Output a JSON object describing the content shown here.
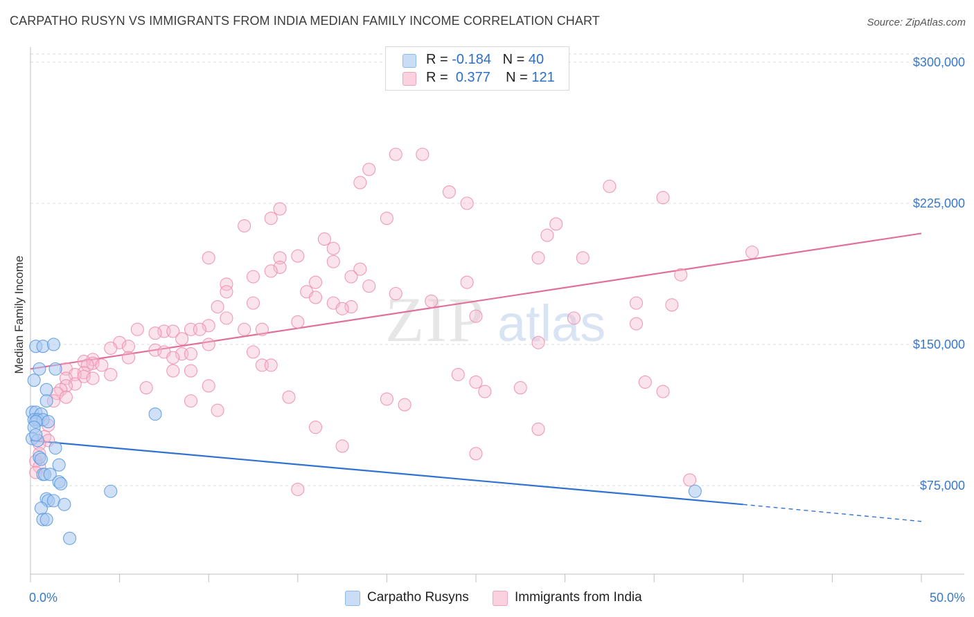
{
  "title": "CARPATHO RUSYN VS IMMIGRANTS FROM INDIA MEDIAN FAMILY INCOME CORRELATION CHART",
  "source": "Source: ZipAtlas.com",
  "watermark": {
    "zip": "ZIP",
    "atlas": "atlas"
  },
  "legend": {
    "rows": [
      {
        "r_label": "R = ",
        "r_value": "-0.184",
        "n_label": "N = ",
        "n_value": "40",
        "color": "#a9c9f0"
      },
      {
        "r_label": "R = ",
        "r_value": "0.377",
        "n_label": "N = ",
        "n_value": "121",
        "color": "#f5b8cc"
      }
    ]
  },
  "bottom_legend": [
    {
      "label": "Carpatho Rusyns",
      "color": "#a9c9f0"
    },
    {
      "label": "Immigrants from India",
      "color": "#f5b8cc"
    }
  ],
  "chart_data": {
    "type": "scatter",
    "title": "CARPATHO RUSYN VS IMMIGRANTS FROM INDIA MEDIAN FAMILY INCOME CORRELATION CHART",
    "xlabel": "",
    "ylabel": "Median Family Income",
    "xlim": [
      0,
      50
    ],
    "ylim": [
      28000,
      308000
    ],
    "x_tick_labels": [
      {
        "x": 0,
        "label": "0.0%"
      },
      {
        "x": 50,
        "label": "50.0%"
      }
    ],
    "y_ticks": [
      {
        "y": 75000,
        "label": "$75,000"
      },
      {
        "y": 150000,
        "label": "$150,000"
      },
      {
        "y": 225000,
        "label": "$225,000"
      },
      {
        "y": 300000,
        "label": "$300,000"
      }
    ],
    "series": [
      {
        "name": "Carpatho Rusyns",
        "color": "#5b9be0",
        "fill": "#a9c9f0",
        "trend": {
          "x0": 0,
          "y0": 99000,
          "x1": 40,
          "y1": 65000,
          "dash_to_x": 50,
          "dash_to_y": 56000,
          "color": "#2f72d0"
        },
        "points": [
          [
            0.3,
            149000
          ],
          [
            0.7,
            149000
          ],
          [
            1.3,
            150000
          ],
          [
            0.5,
            137000
          ],
          [
            1.4,
            137000
          ],
          [
            0.2,
            131000
          ],
          [
            0.9,
            126000
          ],
          [
            0.9,
            120000
          ],
          [
            0.1,
            114000
          ],
          [
            0.3,
            114000
          ],
          [
            0.6,
            113000
          ],
          [
            7.0,
            113000
          ],
          [
            0.2,
            110000
          ],
          [
            0.4,
            110000
          ],
          [
            0.7,
            110000
          ],
          [
            0.3,
            109000
          ],
          [
            0.2,
            106000
          ],
          [
            0.1,
            100000
          ],
          [
            0.4,
            99000
          ],
          [
            1.4,
            95000
          ],
          [
            0.5,
            90000
          ],
          [
            0.6,
            89000
          ],
          [
            1.6,
            86000
          ],
          [
            0.7,
            81000
          ],
          [
            0.8,
            81000
          ],
          [
            1.1,
            81000
          ],
          [
            1.6,
            77000
          ],
          [
            1.7,
            76000
          ],
          [
            4.5,
            72000
          ],
          [
            0.9,
            68000
          ],
          [
            1.0,
            67000
          ],
          [
            1.3,
            67000
          ],
          [
            1.9,
            65000
          ],
          [
            0.6,
            63000
          ],
          [
            0.7,
            57000
          ],
          [
            0.9,
            57000
          ],
          [
            2.2,
            47000
          ],
          [
            37.3,
            72000
          ],
          [
            0.3,
            102000
          ],
          [
            1.0,
            109000
          ]
        ]
      },
      {
        "name": "Immigrants from India",
        "color": "#ee8fae",
        "fill": "#f5b8cc",
        "trend": {
          "x0": 0,
          "y0": 137000,
          "x1": 50,
          "y1": 209000,
          "color": "#e0709a"
        },
        "points": [
          [
            20.5,
            251000
          ],
          [
            22.0,
            251000
          ],
          [
            19.0,
            243000
          ],
          [
            18.5,
            236000
          ],
          [
            32.5,
            234000
          ],
          [
            23.5,
            231000
          ],
          [
            35.5,
            228000
          ],
          [
            24.5,
            225000
          ],
          [
            14.0,
            222000
          ],
          [
            13.5,
            217000
          ],
          [
            20.0,
            217000
          ],
          [
            12.0,
            213000
          ],
          [
            29.5,
            214000
          ],
          [
            29.0,
            208000
          ],
          [
            16.5,
            206000
          ],
          [
            17.0,
            201000
          ],
          [
            15.0,
            197000
          ],
          [
            10.0,
            196000
          ],
          [
            14.0,
            196000
          ],
          [
            28.5,
            196000
          ],
          [
            31.0,
            196000
          ],
          [
            40.5,
            199000
          ],
          [
            17.0,
            194000
          ],
          [
            14.0,
            191000
          ],
          [
            18.5,
            190000
          ],
          [
            12.5,
            186000
          ],
          [
            13.5,
            189000
          ],
          [
            18.0,
            186000
          ],
          [
            36.5,
            187000
          ],
          [
            11.0,
            182000
          ],
          [
            16.0,
            183000
          ],
          [
            24.5,
            183000
          ],
          [
            11.0,
            178000
          ],
          [
            15.5,
            178000
          ],
          [
            19.0,
            181000
          ],
          [
            20.5,
            177000
          ],
          [
            16.0,
            175000
          ],
          [
            17.0,
            172000
          ],
          [
            12.5,
            172000
          ],
          [
            22.5,
            173000
          ],
          [
            34.0,
            172000
          ],
          [
            36.0,
            171000
          ],
          [
            10.5,
            170000
          ],
          [
            18.0,
            170000
          ],
          [
            17.5,
            169000
          ],
          [
            25.0,
            165000
          ],
          [
            30.5,
            164000
          ],
          [
            11.0,
            164000
          ],
          [
            15.0,
            162000
          ],
          [
            10.0,
            160000
          ],
          [
            34.0,
            161000
          ],
          [
            9.0,
            158000
          ],
          [
            9.5,
            158000
          ],
          [
            12.0,
            158000
          ],
          [
            13.0,
            158000
          ],
          [
            6.0,
            158000
          ],
          [
            7.5,
            157000
          ],
          [
            8.0,
            157000
          ],
          [
            7.0,
            156000
          ],
          [
            28.5,
            151000
          ],
          [
            8.5,
            153000
          ],
          [
            5.0,
            151000
          ],
          [
            10.0,
            150000
          ],
          [
            5.5,
            149000
          ],
          [
            4.5,
            148000
          ],
          [
            7.0,
            147000
          ],
          [
            7.5,
            146000
          ],
          [
            12.5,
            146000
          ],
          [
            8.5,
            145000
          ],
          [
            8.0,
            143000
          ],
          [
            5.5,
            143000
          ],
          [
            9.0,
            145000
          ],
          [
            3.5,
            142000
          ],
          [
            3.0,
            141000
          ],
          [
            3.5,
            140000
          ],
          [
            3.2,
            139000
          ],
          [
            4.0,
            139000
          ],
          [
            13.0,
            139000
          ],
          [
            13.5,
            139000
          ],
          [
            2.0,
            137000
          ],
          [
            3.0,
            135000
          ],
          [
            8.0,
            136000
          ],
          [
            9.0,
            136000
          ],
          [
            4.5,
            134000
          ],
          [
            2.5,
            134000
          ],
          [
            3.0,
            133000
          ],
          [
            24.0,
            134000
          ],
          [
            2.0,
            132000
          ],
          [
            3.5,
            132000
          ],
          [
            2.5,
            129000
          ],
          [
            2.0,
            128000
          ],
          [
            25.0,
            130000
          ],
          [
            6.5,
            127000
          ],
          [
            10.0,
            128000
          ],
          [
            1.7,
            126000
          ],
          [
            27.5,
            127000
          ],
          [
            34.5,
            130000
          ],
          [
            25.5,
            125000
          ],
          [
            35.5,
            125000
          ],
          [
            1.5,
            124000
          ],
          [
            2.0,
            122000
          ],
          [
            1.3,
            120000
          ],
          [
            9.0,
            120000
          ],
          [
            14.5,
            122000
          ],
          [
            20.0,
            121000
          ],
          [
            21.0,
            118000
          ],
          [
            10.5,
            115000
          ],
          [
            1.0,
            107000
          ],
          [
            16.0,
            106000
          ],
          [
            28.5,
            105000
          ],
          [
            0.8,
            101000
          ],
          [
            1.0,
            99000
          ],
          [
            0.5,
            97000
          ],
          [
            17.5,
            96000
          ],
          [
            0.5,
            92000
          ],
          [
            25.0,
            92000
          ],
          [
            0.3,
            88000
          ],
          [
            0.5,
            85000
          ],
          [
            0.3,
            82000
          ],
          [
            37.0,
            78000
          ],
          [
            15.0,
            73000
          ]
        ]
      }
    ]
  }
}
